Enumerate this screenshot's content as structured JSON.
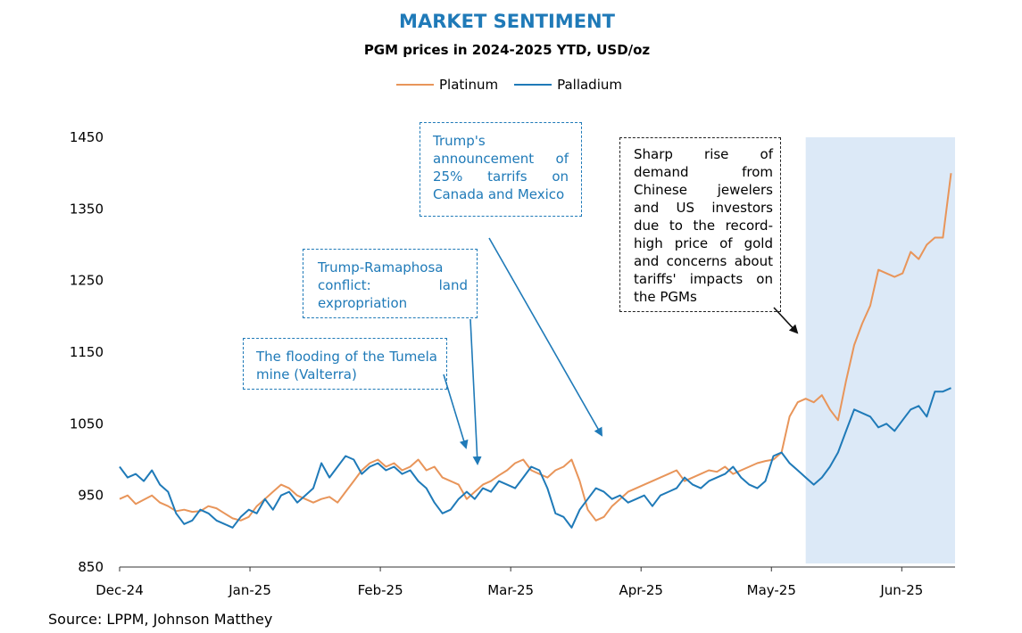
{
  "title": "MARKET SENTIMENT",
  "subtitle": "PGM prices in 2024-2025 YTD, USD/oz",
  "source": "Source: LPPM, Johnson Matthey",
  "chart_data": {
    "type": "line",
    "y_ticks": [
      "1450",
      "1350",
      "1250",
      "1150",
      "1050",
      "950",
      "850"
    ],
    "ylim": [
      850,
      1450
    ],
    "x_ticks": [
      "Dec-24",
      "Jan-25",
      "Feb-25",
      "Mar-25",
      "Apr-25",
      "May-25",
      "Jun-25"
    ],
    "x_range_days": [
      0,
      207
    ],
    "highlight_range_days": [
      170,
      207
    ],
    "colors": {
      "Platinum": "#e8955a",
      "Palladium": "#1f7ab8",
      "highlight": "#dce9f7"
    },
    "series": [
      {
        "name": "Platinum",
        "x": [
          0,
          2,
          4,
          6,
          8,
          10,
          12,
          14,
          16,
          18,
          20,
          22,
          24,
          26,
          28,
          30,
          32,
          34,
          36,
          38,
          40,
          42,
          44,
          46,
          48,
          50,
          52,
          54,
          56,
          58,
          60,
          62,
          64,
          66,
          68,
          70,
          72,
          74,
          76,
          78,
          80,
          82,
          84,
          86,
          88,
          90,
          92,
          94,
          96,
          98,
          100,
          102,
          104,
          106,
          108,
          110,
          112,
          114,
          116,
          118,
          120,
          122,
          124,
          126,
          128,
          130,
          132,
          134,
          136,
          138,
          140,
          142,
          144,
          146,
          148,
          150,
          152,
          154,
          156,
          158,
          160,
          162,
          164,
          166,
          168,
          170,
          172,
          174,
          176,
          178,
          180,
          182,
          184,
          186,
          188,
          190,
          192,
          194,
          196,
          198,
          200,
          202,
          204,
          206
        ],
        "y": [
          945,
          950,
          938,
          944,
          950,
          940,
          935,
          928,
          930,
          927,
          928,
          935,
          932,
          925,
          918,
          915,
          920,
          935,
          945,
          955,
          965,
          960,
          950,
          945,
          940,
          945,
          948,
          940,
          955,
          970,
          985,
          995,
          1000,
          990,
          995,
          985,
          990,
          1000,
          985,
          990,
          975,
          970,
          965,
          945,
          955,
          965,
          970,
          978,
          985,
          995,
          1000,
          985,
          980,
          975,
          985,
          990,
          1000,
          970,
          930,
          915,
          920,
          935,
          945,
          955,
          960,
          965,
          970,
          975,
          980,
          985,
          970,
          975,
          980,
          985,
          983,
          990,
          980,
          985,
          990,
          995,
          998,
          1000,
          1010,
          1060,
          1080,
          1085,
          1080,
          1090,
          1070,
          1055,
          1110,
          1160,
          1190,
          1215,
          1265,
          1260,
          1255,
          1260,
          1290,
          1280,
          1300,
          1310,
          1310,
          1400
        ]
      },
      {
        "name": "Palladium",
        "x": [
          0,
          2,
          4,
          6,
          8,
          10,
          12,
          14,
          16,
          18,
          20,
          22,
          24,
          26,
          28,
          30,
          32,
          34,
          36,
          38,
          40,
          42,
          44,
          46,
          48,
          50,
          52,
          54,
          56,
          58,
          60,
          62,
          64,
          66,
          68,
          70,
          72,
          74,
          76,
          78,
          80,
          82,
          84,
          86,
          88,
          90,
          92,
          94,
          96,
          98,
          100,
          102,
          104,
          106,
          108,
          110,
          112,
          114,
          116,
          118,
          120,
          122,
          124,
          126,
          128,
          130,
          132,
          134,
          136,
          138,
          140,
          142,
          144,
          146,
          148,
          150,
          152,
          154,
          156,
          158,
          160,
          162,
          164,
          166,
          168,
          170,
          172,
          174,
          176,
          178,
          180,
          182,
          184,
          186,
          188,
          190,
          192,
          194,
          196,
          198,
          200,
          202,
          204,
          206
        ],
        "y": [
          990,
          975,
          980,
          970,
          985,
          965,
          955,
          925,
          910,
          915,
          930,
          925,
          915,
          910,
          905,
          920,
          930,
          925,
          945,
          930,
          950,
          955,
          940,
          950,
          960,
          995,
          975,
          990,
          1005,
          1000,
          980,
          990,
          995,
          985,
          990,
          980,
          985,
          970,
          960,
          940,
          925,
          930,
          945,
          955,
          945,
          960,
          955,
          970,
          965,
          960,
          975,
          990,
          985,
          960,
          925,
          920,
          905,
          930,
          945,
          960,
          955,
          945,
          950,
          940,
          945,
          950,
          935,
          950,
          955,
          960,
          975,
          965,
          960,
          970,
          975,
          980,
          990,
          975,
          965,
          960,
          970,
          1005,
          1010,
          995,
          985,
          975,
          965,
          975,
          990,
          1010,
          1040,
          1070,
          1065,
          1060,
          1045,
          1050,
          1040,
          1055,
          1070,
          1075,
          1060,
          1095,
          1095,
          1100
        ]
      }
    ]
  },
  "annotations": [
    {
      "id": "tumela",
      "text": "The flooding of the Tumela mine (Valterra)"
    },
    {
      "id": "ramaphosa",
      "text": "Trump-Ramaphosa conflict: land expropriation"
    },
    {
      "id": "tariffs",
      "text": "Trump's announcement of 25% tarrifs on Canada and Mexico"
    },
    {
      "id": "demand",
      "text": "Sharp rise of demand from Chinese jewelers and US investors due to the record-high price of gold and concerns about tariffs' impacts on the PGMs"
    }
  ]
}
